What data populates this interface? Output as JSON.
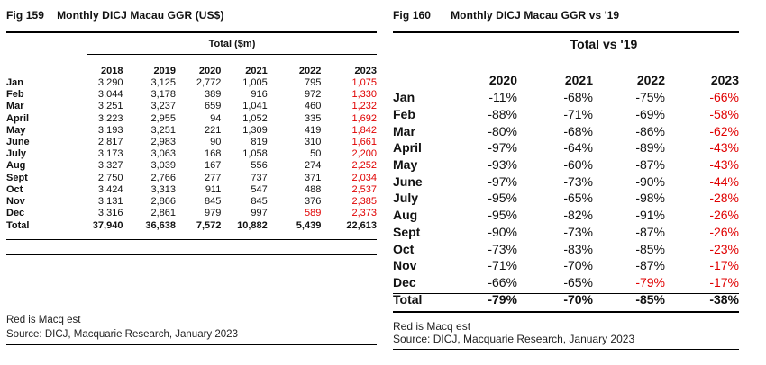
{
  "fig159": {
    "number": "Fig 159",
    "title": "Monthly DICJ Macau GGR (US$)",
    "group_header": "Total ($m)",
    "columns": [
      "2018",
      "2019",
      "2020",
      "2021",
      "2022",
      "2023"
    ],
    "rows": [
      {
        "label": "Jan",
        "values": [
          "3,290",
          "3,125",
          "2,772",
          "1,005",
          "795",
          "1,075"
        ],
        "red": [
          5
        ]
      },
      {
        "label": "Feb",
        "values": [
          "3,044",
          "3,178",
          "389",
          "916",
          "972",
          "1,330"
        ],
        "red": [
          5
        ]
      },
      {
        "label": "Mar",
        "values": [
          "3,251",
          "3,237",
          "659",
          "1,041",
          "460",
          "1,232"
        ],
        "red": [
          5
        ]
      },
      {
        "label": "April",
        "values": [
          "3,223",
          "2,955",
          "94",
          "1,052",
          "335",
          "1,692"
        ],
        "red": [
          5
        ]
      },
      {
        "label": "May",
        "values": [
          "3,193",
          "3,251",
          "221",
          "1,309",
          "419",
          "1,842"
        ],
        "red": [
          5
        ]
      },
      {
        "label": "June",
        "values": [
          "2,817",
          "2,983",
          "90",
          "819",
          "310",
          "1,661"
        ],
        "red": [
          5
        ]
      },
      {
        "label": "July",
        "values": [
          "3,173",
          "3,063",
          "168",
          "1,058",
          "50",
          "2,200"
        ],
        "red": [
          5
        ]
      },
      {
        "label": "Aug",
        "values": [
          "3,327",
          "3,039",
          "167",
          "556",
          "274",
          "2,252"
        ],
        "red": [
          5
        ]
      },
      {
        "label": "Sept",
        "values": [
          "2,750",
          "2,766",
          "277",
          "737",
          "371",
          "2,034"
        ],
        "red": [
          5
        ]
      },
      {
        "label": "Oct",
        "values": [
          "3,424",
          "3,313",
          "911",
          "547",
          "488",
          "2,537"
        ],
        "red": [
          5
        ]
      },
      {
        "label": "Nov",
        "values": [
          "3,131",
          "2,866",
          "845",
          "845",
          "376",
          "2,385"
        ],
        "red": [
          5
        ]
      },
      {
        "label": "Dec",
        "values": [
          "3,316",
          "2,861",
          "979",
          "997",
          "589",
          "2,373"
        ],
        "red": [
          4,
          5
        ]
      }
    ],
    "total": {
      "label": "Total",
      "values": [
        "37,940",
        "36,638",
        "7,572",
        "10,882",
        "5,439",
        "22,613"
      ]
    },
    "note": "Red is Macq est",
    "source": "Source: DICJ, Macquarie Research, January 2023"
  },
  "fig160": {
    "number": "Fig 160",
    "title": "Monthly DICJ Macau GGR vs '19",
    "group_header": "Total vs '19",
    "columns": [
      "2020",
      "2021",
      "2022",
      "2023"
    ],
    "rows": [
      {
        "label": "Jan",
        "values": [
          "-11%",
          "-68%",
          "-75%",
          "-66%"
        ],
        "red": [
          3
        ]
      },
      {
        "label": "Feb",
        "values": [
          "-88%",
          "-71%",
          "-69%",
          "-58%"
        ],
        "red": [
          3
        ]
      },
      {
        "label": "Mar",
        "values": [
          "-80%",
          "-68%",
          "-86%",
          "-62%"
        ],
        "red": [
          3
        ]
      },
      {
        "label": "April",
        "values": [
          "-97%",
          "-64%",
          "-89%",
          "-43%"
        ],
        "red": [
          3
        ]
      },
      {
        "label": "May",
        "values": [
          "-93%",
          "-60%",
          "-87%",
          "-43%"
        ],
        "red": [
          3
        ]
      },
      {
        "label": "June",
        "values": [
          "-97%",
          "-73%",
          "-90%",
          "-44%"
        ],
        "red": [
          3
        ]
      },
      {
        "label": "July",
        "values": [
          "-95%",
          "-65%",
          "-98%",
          "-28%"
        ],
        "red": [
          3
        ]
      },
      {
        "label": "Aug",
        "values": [
          "-95%",
          "-82%",
          "-91%",
          "-26%"
        ],
        "red": [
          3
        ]
      },
      {
        "label": "Sept",
        "values": [
          "-90%",
          "-73%",
          "-87%",
          "-26%"
        ],
        "red": [
          3
        ]
      },
      {
        "label": "Oct",
        "values": [
          "-73%",
          "-83%",
          "-85%",
          "-23%"
        ],
        "red": [
          3
        ]
      },
      {
        "label": "Nov",
        "values": [
          "-71%",
          "-70%",
          "-87%",
          "-17%"
        ],
        "red": [
          3
        ]
      },
      {
        "label": "Dec",
        "values": [
          "-66%",
          "-65%",
          "-79%",
          "-17%"
        ],
        "red": [
          2,
          3
        ]
      }
    ],
    "total": {
      "label": "Total",
      "values": [
        "-79%",
        "-70%",
        "-85%",
        "-38%"
      ]
    },
    "note": "Red is Macq est",
    "source": "Source: DICJ, Macquarie Research, January 2023"
  },
  "colors": {
    "estimate": "#e00000",
    "text": "#111111",
    "rule": "#000000"
  }
}
